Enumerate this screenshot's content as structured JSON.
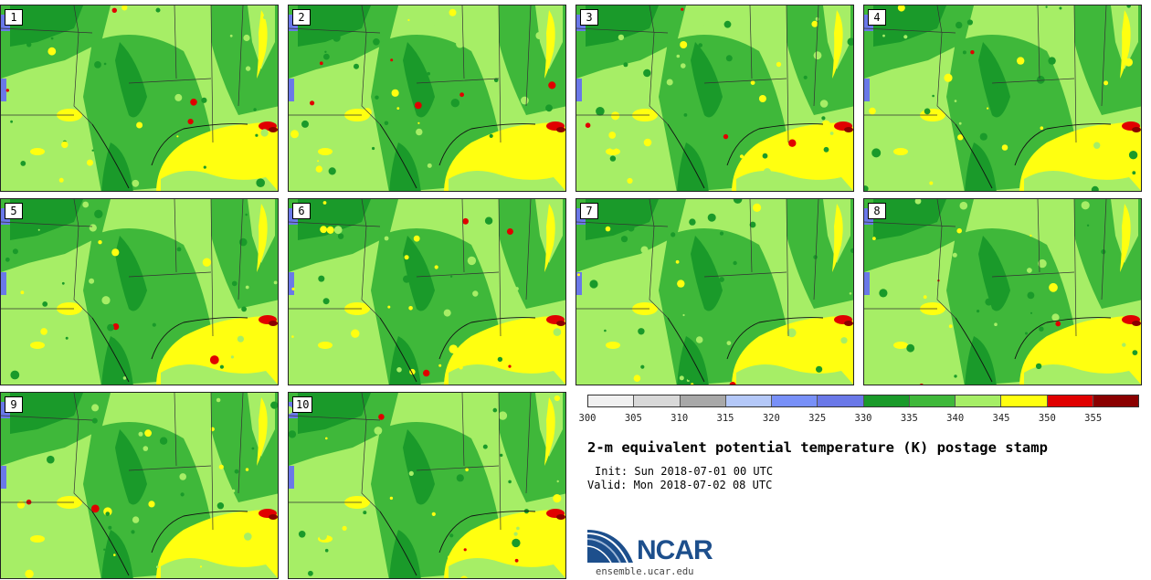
{
  "members": [
    "1",
    "2",
    "3",
    "4",
    "5",
    "6",
    "7",
    "8",
    "9",
    "10"
  ],
  "colorbar": {
    "colors": [
      "#f0f0f0",
      "#d8d8d8",
      "#a8a8a8",
      "#b4c8f8",
      "#7890f8",
      "#6a78e8",
      "#1a9a2a",
      "#3fb83a",
      "#a6ee66",
      "#ffff10",
      "#e00000",
      "#8a0000"
    ],
    "ticks": [
      "300",
      "305",
      "310",
      "315",
      "320",
      "325",
      "330",
      "335",
      "340",
      "345",
      "350",
      "355"
    ]
  },
  "title": "2-m equivalent potential temperature (K) postage stamp",
  "init": "Init: Sun 2018-07-01 00 UTC",
  "valid": "Valid: Mon 2018-07-02 08 UTC",
  "logo": {
    "text": "NCAR",
    "site": "ensemble.ucar.edu",
    "color": "#1d4f8c"
  },
  "map_colors": {
    "dark_green": "#1a9a2a",
    "green": "#3fb83a",
    "light_green": "#a6ee66",
    "yellow": "#ffff10",
    "red": "#e00000",
    "dark_red": "#8a0000",
    "blue": "#6a78e8"
  }
}
